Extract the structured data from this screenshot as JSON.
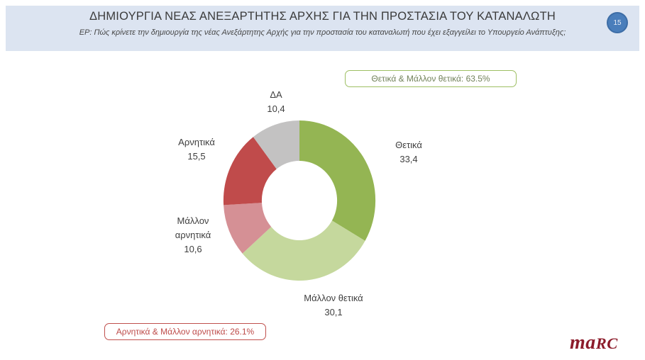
{
  "header": {
    "title": "ΔΗΜΙΟΥΡΓΙΑ ΝΕΑΣ ΑΝΕΞΑΡΤΗΤΗΣ ΑΡΧΗΣ ΓΙΑ ΤΗΝ ΠΡΟΣΤΑΣΙΑ ΤΟΥ ΚΑΤΑΝΑΛΩΤΗ",
    "subtitle": "ΕΡ: Πώς κρίνετε την δημιουργία της νέας Ανεξάρτητης Αρχής για την προστασία του καταναλωτή που έχει εξαγγείλει το Υπουργείο Ανάπτυξης;",
    "slide_number": "15",
    "background_color": "#dce4f1",
    "badge_fill_color": "#4a7ebb",
    "badge_border_color": "#3d6da6"
  },
  "chart_data": {
    "type": "pie",
    "subtype": "donut",
    "start_angle": "top",
    "direction": "clockwise",
    "total": 100,
    "segments": [
      {
        "label": "Θετικά",
        "value": 33.4,
        "value_label": "33,4",
        "color": "#94b553"
      },
      {
        "label": "Μάλλον θετικά",
        "value": 30.1,
        "value_label": "30,1",
        "color": "#c5d89d"
      },
      {
        "label": "Μάλλον αρνητικά",
        "value": 10.6,
        "value_label": "10,6",
        "color": "#d59095"
      },
      {
        "label": "Αρνητικά",
        "value": 15.5,
        "value_label": "15,5",
        "color": "#c04b4b"
      },
      {
        "label": "ΔΑ",
        "value": 10.4,
        "value_label": "10,4",
        "color": "#c3c2c2"
      }
    ],
    "annotations": [
      {
        "id": "positive",
        "text": "Θετικά & Μάλλον θετικά: 63.5%",
        "border_color": "#9ebf63",
        "text_color": "#72825a"
      },
      {
        "id": "negative",
        "text": "Αρνητικά & Μάλλον αρνητικά: 26.1%",
        "border_color": "#c0504d",
        "text_color": "#bd4a48"
      }
    ]
  },
  "logo": {
    "text_lower": "ma",
    "text_caps": "RC",
    "color": "#8c1c2b"
  }
}
